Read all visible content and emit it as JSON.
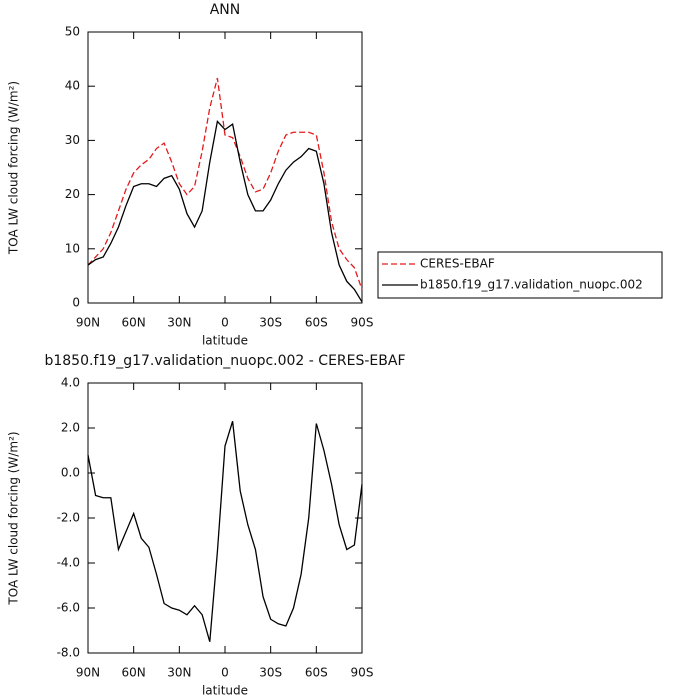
{
  "chart_data": [
    {
      "type": "line",
      "title": "ANN",
      "x_label": "latitude",
      "y_label": "TOA LW cloud forcing (W/m²)",
      "x": [
        90,
        85,
        80,
        75,
        70,
        65,
        60,
        55,
        50,
        45,
        40,
        35,
        30,
        25,
        20,
        15,
        10,
        5,
        0,
        -5,
        -10,
        -15,
        -20,
        -25,
        -30,
        -35,
        -40,
        -45,
        -50,
        -55,
        -60,
        -65,
        -70,
        -75,
        -80,
        -85,
        -90
      ],
      "series": [
        {
          "name": "CERES-EBAF",
          "color": "#e41a1c",
          "line_style": "dashed",
          "values": [
            7,
            8.5,
            10,
            13,
            17,
            21,
            24,
            25.5,
            26.5,
            28.5,
            29.5,
            26,
            22,
            20,
            21.5,
            28,
            36,
            41.5,
            31,
            30.5,
            27,
            23,
            20.5,
            21,
            24,
            28,
            31,
            31.5,
            31.5,
            31.5,
            31,
            24,
            15,
            10,
            8,
            6.5,
            2.5
          ]
        },
        {
          "name": "b1850.f19_g17.validation_nuopc.002",
          "color": "#000000",
          "line_style": "solid",
          "values": [
            7,
            8,
            8.5,
            11,
            14,
            18,
            21.5,
            22,
            22,
            21.5,
            23,
            23.5,
            21,
            16.5,
            14,
            17,
            26,
            33.5,
            32,
            33,
            26,
            20,
            17,
            17,
            19,
            22,
            24.5,
            26,
            27,
            28.5,
            28,
            22,
            13,
            7,
            4,
            2.5,
            0.2
          ]
        }
      ],
      "xlim": [
        90,
        -90
      ],
      "xticks": [
        {
          "value": 90,
          "label": "90N"
        },
        {
          "value": 60,
          "label": "60N"
        },
        {
          "value": 30,
          "label": "30N"
        },
        0,
        {
          "value": -30,
          "label": "30S"
        },
        {
          "value": -60,
          "label": "60S"
        },
        {
          "value": -90,
          "label": "90S"
        }
      ],
      "ylim": [
        0,
        50
      ],
      "yticks": [
        0,
        10,
        20,
        30,
        40,
        50
      ],
      "legend": "right"
    },
    {
      "type": "line",
      "title": "b1850.f19_g17.validation_nuopc.002 - CERES-EBAF",
      "x_label": "latitude",
      "y_label": "TOA LW cloud forcing (W/m²)",
      "x": [
        90,
        85,
        80,
        75,
        70,
        65,
        60,
        55,
        50,
        45,
        40,
        35,
        30,
        25,
        20,
        15,
        10,
        5,
        0,
        -5,
        -10,
        -15,
        -20,
        -25,
        -30,
        -35,
        -40,
        -45,
        -50,
        -55,
        -60,
        -65,
        -70,
        -75,
        -80,
        -85,
        -90
      ],
      "color": "#000000",
      "values": [
        0.8,
        -1.0,
        -1.1,
        -1.1,
        -3.4,
        -2.6,
        -1.8,
        -2.9,
        -3.3,
        -4.5,
        -5.8,
        -6.0,
        -6.1,
        -6.3,
        -5.9,
        -6.3,
        -7.5,
        -3.5,
        1.2,
        2.3,
        -0.8,
        -2.3,
        -3.4,
        -5.5,
        -6.5,
        -6.7,
        -6.8,
        -6.0,
        -4.5,
        -2.0,
        2.2,
        1.0,
        -0.5,
        -2.3,
        -3.4,
        -3.2,
        -0.5
      ],
      "xlim": [
        90,
        -90
      ],
      "xticks": [
        {
          "value": 90,
          "label": "90N"
        },
        {
          "value": 60,
          "label": "60N"
        },
        {
          "value": 30,
          "label": "30N"
        },
        0,
        {
          "value": -30,
          "label": "30S"
        },
        {
          "value": -60,
          "label": "60S"
        },
        {
          "value": -90,
          "label": "90S"
        }
      ],
      "ylim": [
        -8,
        4
      ],
      "yticks": [
        {
          "value": -8,
          "label": "-8.0"
        },
        {
          "value": -6,
          "label": "-6.0"
        },
        {
          "value": -4,
          "label": "-4.0"
        },
        {
          "value": -2,
          "label": "-2.0"
        },
        {
          "value": 0,
          "label": "0.0"
        },
        {
          "value": 2,
          "label": "2.0"
        },
        {
          "value": 4,
          "label": "4.0"
        }
      ]
    }
  ]
}
